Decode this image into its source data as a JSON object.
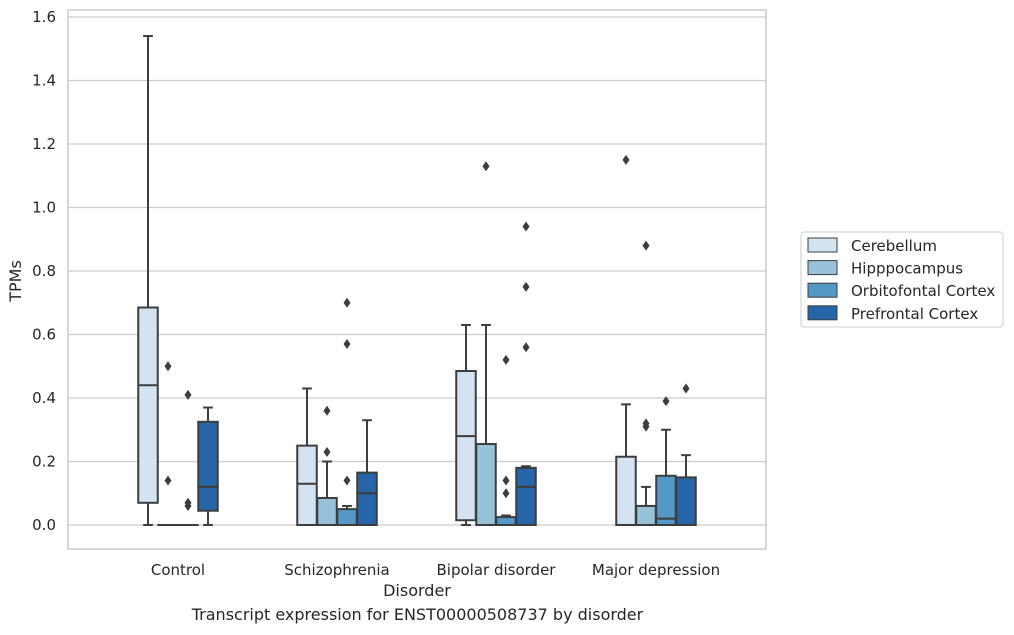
{
  "caption": "Transcript expression for ENST00000508737 by disorder",
  "chart_data": {
    "type": "boxplot",
    "title": "",
    "xlabel": "Disorder",
    "ylabel": "TPMs",
    "ylim": [
      -0.075,
      1.62
    ],
    "yticks": [
      0.0,
      0.2,
      0.4,
      0.6,
      0.8,
      1.0,
      1.2,
      1.4,
      1.6
    ],
    "grid": "horizontal",
    "legend_position": "right",
    "categories": [
      "Control",
      "Schizophrenia",
      "Bipolar disorder",
      "Major depression"
    ],
    "series": [
      {
        "name": "Cerebellum",
        "color": "#d3e3f2",
        "boxes": [
          {
            "whislo": 0.0,
            "q1": 0.07,
            "med": 0.44,
            "q3": 0.685,
            "whishi": 1.54,
            "fliers": []
          },
          {
            "whislo": 0.0,
            "q1": 0.0,
            "med": 0.13,
            "q3": 0.25,
            "whishi": 0.43,
            "fliers": []
          },
          {
            "whislo": 0.0,
            "q1": 0.015,
            "med": 0.28,
            "q3": 0.485,
            "whishi": 0.63,
            "fliers": []
          },
          {
            "whislo": 0.0,
            "q1": 0.0,
            "med": 0.0,
            "q3": 0.215,
            "whishi": 0.38,
            "fliers": [
              1.15
            ]
          }
        ]
      },
      {
        "name": "Hipppocampus",
        "color": "#98c1dc",
        "boxes": [
          {
            "whislo": 0.0,
            "q1": 0.0,
            "med": 0.0,
            "q3": 0.0,
            "whishi": 0.0,
            "fliers": [
              0.5,
              0.14
            ]
          },
          {
            "whislo": 0.0,
            "q1": 0.0,
            "med": 0.0,
            "q3": 0.085,
            "whishi": 0.2,
            "fliers": [
              0.36,
              0.23
            ]
          },
          {
            "whislo": 0.0,
            "q1": 0.0,
            "med": 0.0,
            "q3": 0.255,
            "whishi": 0.63,
            "fliers": [
              1.13
            ]
          },
          {
            "whislo": 0.0,
            "q1": 0.0,
            "med": 0.0,
            "q3": 0.06,
            "whishi": 0.12,
            "fliers": [
              0.88,
              0.32,
              0.31
            ]
          }
        ]
      },
      {
        "name": "Orbitofontal Cortex",
        "color": "#5498c6",
        "boxes": [
          {
            "whislo": 0.0,
            "q1": 0.0,
            "med": 0.0,
            "q3": 0.0,
            "whishi": 0.0,
            "fliers": [
              0.41,
              0.07,
              0.06
            ]
          },
          {
            "whislo": 0.0,
            "q1": 0.0,
            "med": 0.0,
            "q3": 0.05,
            "whishi": 0.06,
            "fliers": [
              0.7,
              0.57,
              0.14
            ]
          },
          {
            "whislo": 0.0,
            "q1": 0.0,
            "med": 0.0,
            "q3": 0.025,
            "whishi": 0.03,
            "fliers": [
              0.52,
              0.14,
              0.1
            ]
          },
          {
            "whislo": 0.0,
            "q1": 0.0,
            "med": 0.02,
            "q3": 0.155,
            "whishi": 0.3,
            "fliers": [
              0.39
            ]
          }
        ]
      },
      {
        "name": "Prefrontal Cortex",
        "color": "#2565a8",
        "boxes": [
          {
            "whislo": 0.0,
            "q1": 0.045,
            "med": 0.12,
            "q3": 0.325,
            "whishi": 0.37,
            "fliers": []
          },
          {
            "whislo": 0.0,
            "q1": 0.0,
            "med": 0.1,
            "q3": 0.165,
            "whishi": 0.33,
            "fliers": []
          },
          {
            "whislo": 0.0,
            "q1": 0.0,
            "med": 0.12,
            "q3": 0.18,
            "whishi": 0.185,
            "fliers": [
              0.94,
              0.75,
              0.56
            ]
          },
          {
            "whislo": 0.0,
            "q1": 0.0,
            "med": 0.0,
            "q3": 0.15,
            "whishi": 0.22,
            "fliers": [
              0.43
            ]
          }
        ]
      }
    ]
  }
}
